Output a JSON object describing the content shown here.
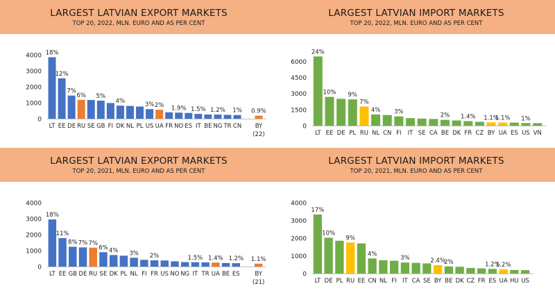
{
  "chart_data": [
    {
      "type": "bar",
      "title": "LARGEST LATVIAN EXPORT MARKETS",
      "subtitle": "TOP 20, 2022, MLN. EURO AND AS PER CENT",
      "categories": [
        "LT",
        "EE",
        "DE",
        "RU",
        "SE",
        "GB",
        "FI",
        "DK",
        "NL",
        "PL",
        "US",
        "UA",
        "FR",
        "NO",
        "ES",
        "IT",
        "BE",
        "NG",
        "TR",
        "CN",
        "BY"
      ],
      "category_sublabels": [
        "",
        "",
        "",
        "",
        "",
        "",
        "",
        "",
        "",
        "",
        "",
        "",
        "",
        "",
        "",
        "",
        "",
        "",
        "",
        "",
        "(22)"
      ],
      "values": [
        3850,
        2530,
        1450,
        1180,
        1170,
        1130,
        980,
        820,
        800,
        760,
        600,
        560,
        400,
        380,
        360,
        300,
        260,
        260,
        240,
        230,
        190
      ],
      "point_labels": [
        "18%",
        "12%",
        "7%",
        "6%",
        "",
        "5%",
        "",
        "4%",
        "",
        "",
        "3%",
        "2%",
        "",
        "1.9%",
        "",
        "1.5%",
        "",
        "1.2%",
        "",
        "1%",
        "0.9%"
      ],
      "highlight": [
        3,
        11,
        20
      ],
      "gap_before_last": true,
      "yticks": [
        0,
        1000,
        2000,
        3000,
        4000
      ],
      "ylim": [
        0,
        4000
      ],
      "colors": {
        "base": "#4472c4",
        "highlight": "#ed7d31"
      }
    },
    {
      "type": "bar",
      "title": "LARGEST LATVIAN IMPORT MARKETS",
      "subtitle": "TOP 20, 2022, MLN. EURO AND AS PER CENT",
      "categories": [
        "LT",
        "EE",
        "DE",
        "PL",
        "RU",
        "NL",
        "CN",
        "FI",
        "IT",
        "SE",
        "CA",
        "BE",
        "DK",
        "FR",
        "CZ",
        "BY",
        "UA",
        "ES",
        "US",
        "VN"
      ],
      "category_sublabels": [],
      "values": [
        6450,
        2680,
        2500,
        2450,
        1780,
        1040,
        990,
        860,
        700,
        660,
        620,
        540,
        480,
        420,
        360,
        300,
        290,
        280,
        240,
        230
      ],
      "point_labels": [
        "24%",
        "10%",
        "",
        "9%",
        "7%",
        "4%",
        "",
        "3%",
        "",
        "",
        "",
        "2%",
        "",
        "1.4%",
        "",
        "1.1%",
        "1.1%",
        "",
        "1%",
        ""
      ],
      "highlight": [
        4,
        15,
        16
      ],
      "gap_before_last": false,
      "yticks": [
        0,
        1500,
        3000,
        4500,
        6000
      ],
      "ylim": [
        0,
        6600
      ],
      "colors": {
        "base": "#70ad47",
        "highlight": "#ffc000"
      }
    },
    {
      "type": "bar",
      "title": "LARGEST LATVIAN EXPORT MARKETS",
      "subtitle": "TOP 20, 2021, MLN. EURO AND AS PER CENT",
      "categories": [
        "LT",
        "EE",
        "GB",
        "DE",
        "RU",
        "SE",
        "DK",
        "PL",
        "NL",
        "FI",
        "FR",
        "US",
        "NO",
        "NG",
        "IT",
        "TR",
        "UA",
        "BE",
        "ES",
        "BY"
      ],
      "category_sublabels": [
        "",
        "",
        "",
        "",
        "",
        "",
        "",
        "",
        "",
        "",
        "",
        "",
        "",
        "",
        "",
        "",
        "",
        "",
        "",
        "(21)"
      ],
      "values": [
        2950,
        1780,
        1240,
        1200,
        1180,
        900,
        720,
        680,
        550,
        420,
        390,
        380,
        330,
        280,
        270,
        260,
        250,
        220,
        210,
        180
      ],
      "point_labels": [
        "18%",
        "11%",
        "8%",
        "7%",
        "7%",
        "6%",
        "4%",
        "",
        "3%",
        "",
        "2%",
        "",
        "",
        "",
        "1.5%",
        "",
        "1.4%",
        "",
        "1.2%",
        "1.1%"
      ],
      "highlight": [
        4,
        16,
        19
      ],
      "gap_before_last": true,
      "yticks": [
        0,
        1000,
        2000,
        3000,
        4000
      ],
      "ylim": [
        0,
        4000
      ],
      "colors": {
        "base": "#4472c4",
        "highlight": "#ed7d31"
      }
    },
    {
      "type": "bar",
      "title": "LARGEST LATVIAN IMPORT MARKETS",
      "subtitle": "TOP 20, 2021, MLN. EURO AND AS PER CENT",
      "categories": [
        "LT",
        "DE",
        "PL",
        "RU",
        "EE",
        "CN",
        "NL",
        "FI",
        "IT",
        "CA",
        "SE",
        "BY",
        "BE",
        "DK",
        "CZ",
        "FR",
        "ES",
        "UA",
        "HU",
        "US"
      ],
      "category_sublabels": [],
      "values": [
        3330,
        2020,
        1850,
        1750,
        1700,
        850,
        750,
        720,
        620,
        600,
        570,
        470,
        400,
        380,
        310,
        290,
        260,
        230,
        200,
        190
      ],
      "point_labels": [
        "17%",
        "10%",
        "",
        "9%",
        "",
        "4%",
        "",
        "",
        "3%",
        "",
        "",
        "2.4%",
        "2%",
        "",
        "",
        "",
        "1.2%",
        "1.2%",
        "",
        ""
      ],
      "highlight": [
        3,
        11,
        17
      ],
      "gap_before_last": false,
      "yticks": [
        0,
        1000,
        2000,
        3000,
        4000
      ],
      "ylim": [
        0,
        4000
      ],
      "colors": {
        "base": "#70ad47",
        "highlight": "#ffc000"
      }
    }
  ]
}
